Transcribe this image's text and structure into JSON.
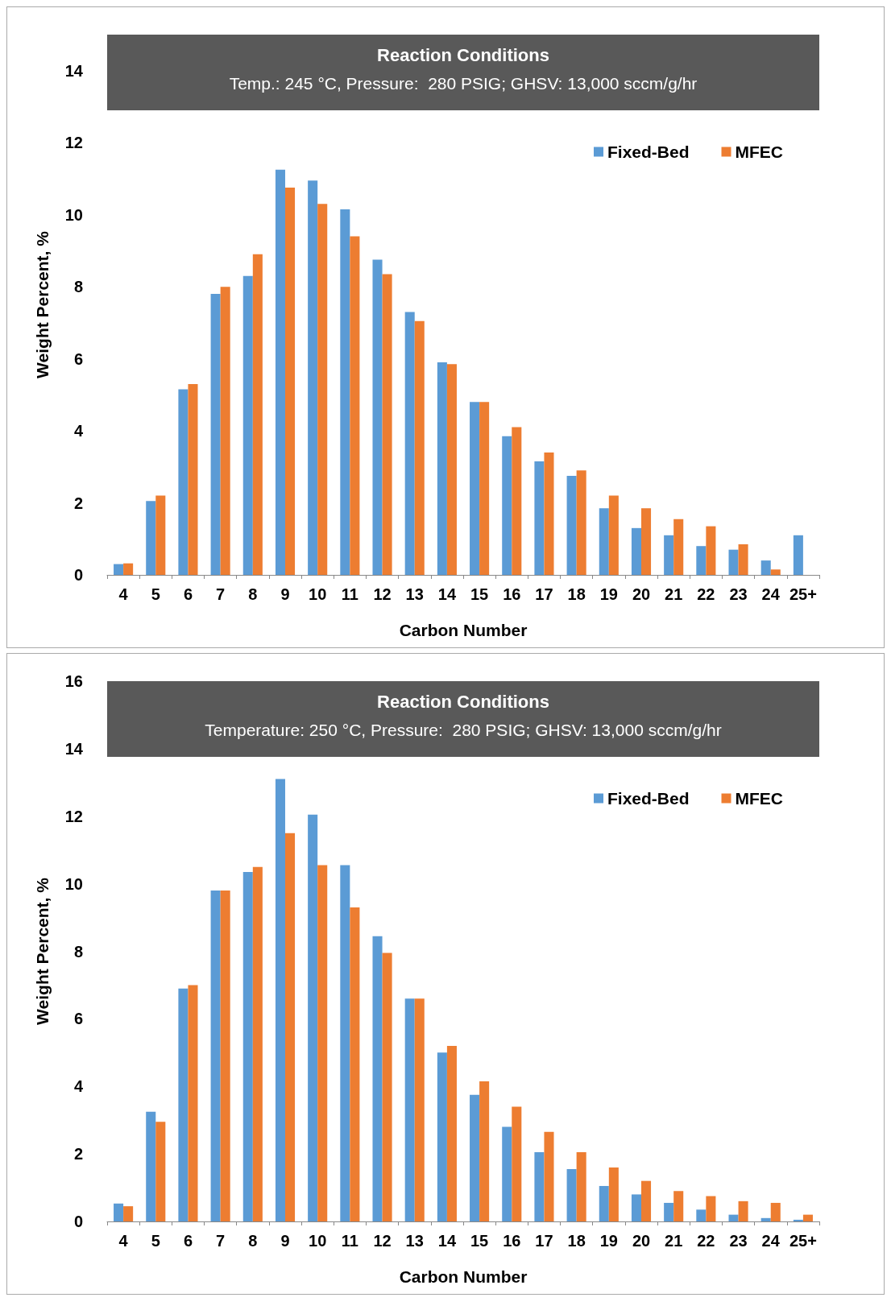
{
  "chart_data": [
    {
      "type": "bar",
      "title": "Reaction Conditions",
      "subtitle": "Temp.: 245 °C, Pressure:  280 PSIG; GHSV: 13,000 sccm/g/hr",
      "xlabel": "Carbon Number",
      "ylabel": "Weight Percent, %",
      "categories": [
        "4",
        "5",
        "6",
        "7",
        "8",
        "9",
        "10",
        "11",
        "12",
        "13",
        "14",
        "15",
        "16",
        "17",
        "18",
        "19",
        "20",
        "21",
        "22",
        "23",
        "24",
        "25+"
      ],
      "series": [
        {
          "name": "Fixed-Bed",
          "color": "#5b9bd5",
          "values": [
            0.3,
            2.05,
            5.15,
            7.8,
            8.3,
            11.25,
            10.95,
            10.15,
            8.75,
            7.3,
            5.9,
            4.8,
            3.85,
            3.15,
            2.75,
            1.85,
            1.3,
            1.1,
            0.8,
            0.7,
            0.4,
            1.1
          ]
        },
        {
          "name": "MFEC",
          "color": "#ed7d31",
          "values": [
            0.32,
            2.2,
            5.3,
            8.0,
            8.9,
            10.75,
            10.3,
            9.4,
            8.35,
            7.05,
            5.85,
            4.8,
            4.1,
            3.4,
            2.9,
            2.2,
            1.85,
            1.55,
            1.35,
            0.85,
            0.15,
            null
          ]
        }
      ],
      "ylim": [
        0,
        15
      ],
      "yticks": [
        0,
        2,
        4,
        6,
        8,
        10,
        12,
        14
      ],
      "legend": "top right",
      "grid": false
    },
    {
      "type": "bar",
      "title": "Reaction Conditions",
      "subtitle": "Temperature: 250 °C, Pressure:  280 PSIG; GHSV: 13,000 sccm/g/hr",
      "xlabel": "Carbon Number",
      "ylabel": "Weight Percent, %",
      "categories": [
        "4",
        "5",
        "6",
        "7",
        "8",
        "9",
        "10",
        "11",
        "12",
        "13",
        "14",
        "15",
        "16",
        "17",
        "18",
        "19",
        "20",
        "21",
        "22",
        "23",
        "24",
        "25+"
      ],
      "series": [
        {
          "name": "Fixed-Bed",
          "color": "#5b9bd5",
          "values": [
            0.53,
            3.25,
            6.9,
            9.8,
            10.35,
            13.1,
            12.05,
            10.55,
            8.45,
            6.6,
            5.0,
            3.75,
            2.8,
            2.05,
            1.55,
            1.05,
            0.8,
            0.55,
            0.35,
            0.2,
            0.1,
            0.05
          ]
        },
        {
          "name": "MFEC",
          "color": "#ed7d31",
          "values": [
            0.45,
            2.95,
            7.0,
            9.8,
            10.5,
            11.5,
            10.55,
            9.3,
            7.95,
            6.6,
            5.2,
            4.15,
            3.4,
            2.65,
            2.05,
            1.6,
            1.2,
            0.9,
            0.75,
            0.6,
            0.55,
            0.2
          ]
        }
      ],
      "ylim": [
        0,
        16
      ],
      "yticks": [
        0,
        2,
        4,
        6,
        8,
        10,
        12,
        14,
        16
      ],
      "legend": "top right",
      "grid": false
    }
  ]
}
